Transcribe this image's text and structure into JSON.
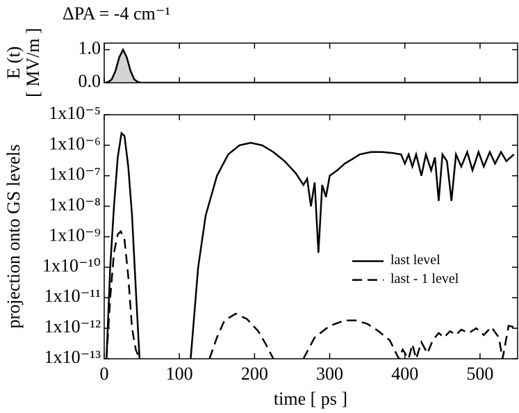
{
  "chart_data": [
    {
      "type": "area",
      "title": "ΔPA = -4 cm⁻¹",
      "y_label": "E (t)",
      "y_label_unit": "[ MV/m ]",
      "xlim": [
        0,
        550
      ],
      "xticks": [
        0,
        100,
        200,
        300,
        400,
        500
      ],
      "ylim": [
        0,
        1.2
      ],
      "yticks": [
        {
          "value": 0,
          "label": "0.0"
        },
        {
          "value": 1,
          "label": "1.0"
        }
      ],
      "series": [
        {
          "color": "#000000",
          "fill": "#d3d3d3",
          "x": [
            0,
            5,
            10,
            15,
            20,
            25,
            30,
            35,
            40,
            45,
            50,
            550
          ],
          "values": [
            0,
            0.02,
            0.1,
            0.36,
            0.77,
            1.0,
            0.77,
            0.36,
            0.1,
            0.02,
            0,
            0
          ]
        }
      ]
    },
    {
      "type": "line",
      "x_label": "time [ ps ]",
      "y_label": "projection onto GS levels",
      "log_y": true,
      "legend": "center right",
      "xlim": [
        0,
        550
      ],
      "xticks": [
        0,
        100,
        200,
        300,
        400,
        500
      ],
      "ylim": [
        1e-13,
        1e-05
      ],
      "yticks": [
        {
          "value": 1e-05,
          "label": "1x10⁻⁵"
        },
        {
          "value": 1e-06,
          "label": "1x10⁻⁶"
        },
        {
          "value": 1e-07,
          "label": "1x10⁻⁷"
        },
        {
          "value": 1e-08,
          "label": "1x10⁻⁸"
        },
        {
          "value": 1e-09,
          "label": "1x10⁻⁹"
        },
        {
          "value": 1e-10,
          "label": "1x10⁻¹⁰"
        },
        {
          "value": 1e-11,
          "label": "1x10⁻¹¹"
        },
        {
          "value": 1e-12,
          "label": "1x10⁻¹²"
        },
        {
          "value": 1e-13,
          "label": "1x10⁻¹³"
        }
      ],
      "series": [
        {
          "name": "last level",
          "color": "#000000",
          "style": "solid",
          "x": [
            3,
            8,
            13,
            18,
            23,
            27,
            32,
            37,
            42,
            47,
            80,
            115,
            125,
            135,
            150,
            165,
            180,
            195,
            210,
            225,
            240,
            255,
            265,
            270,
            275,
            280,
            285,
            290,
            295,
            300,
            310,
            320,
            330,
            340,
            355,
            370,
            385,
            395,
            400,
            405,
            410,
            415,
            422,
            428,
            435,
            440,
            445,
            450,
            456,
            462,
            468,
            475,
            483,
            490,
            498,
            505,
            513,
            520,
            528,
            535,
            545
          ],
          "values": [
            1e-13,
            1e-10,
            1e-08,
            4e-07,
            2.5e-06,
            2e-06,
            2e-07,
            5e-09,
            2e-11,
            1e-13,
            null,
            1e-13,
            1e-10,
            5e-09,
            1e-07,
            5e-07,
            1e-06,
            1.2e-06,
            1e-06,
            6e-07,
            3e-07,
            1.2e-07,
            5e-08,
            8e-08,
            1e-08,
            6e-08,
            3e-10,
            5e-08,
            2e-08,
            1e-07,
            1.5e-07,
            2.5e-07,
            3.5e-07,
            5e-07,
            6e-07,
            6e-07,
            5.5e-07,
            5e-07,
            2.5e-07,
            5e-07,
            2e-07,
            5e-07,
            1e-07,
            5e-07,
            1.5e-07,
            4e-07,
            1.5e-08,
            5e-07,
            3e-07,
            1.5e-08,
            5e-07,
            2e-07,
            6e-07,
            1.5e-07,
            6e-07,
            2e-07,
            6e-07,
            2.5e-07,
            6e-07,
            3e-07,
            5e-07
          ]
        },
        {
          "name": "last - 1 level",
          "color": "#000000",
          "style": "dashed",
          "x": [
            3,
            8,
            13,
            18,
            22,
            27,
            32,
            37,
            42,
            47,
            100,
            140,
            150,
            160,
            175,
            190,
            205,
            215,
            225,
            250,
            265,
            280,
            300,
            320,
            335,
            350,
            365,
            380,
            392,
            397,
            405,
            410,
            415,
            422,
            430,
            437,
            445,
            452,
            460,
            468,
            475,
            485,
            495,
            505,
            515,
            525,
            530,
            538,
            545
          ],
          "values": [
            1e-13,
            1e-11,
            3e-10,
            1.2e-09,
            1.5e-09,
            8e-10,
            5e-11,
            1e-12,
            2e-13,
            1e-13,
            null,
            1e-13,
            5e-13,
            1.8e-12,
            3e-12,
            2e-12,
            8e-13,
            3e-13,
            1e-13,
            null,
            1e-13,
            5e-13,
            1.2e-12,
            1.8e-12,
            1.8e-12,
            1.4e-12,
            8e-13,
            4e-13,
            1e-13,
            2e-13,
            1e-13,
            3e-13,
            1e-13,
            3.5e-13,
            1.5e-13,
            4e-13,
            7e-13,
            5e-13,
            8e-13,
            6e-13,
            9e-13,
            7e-13,
            1e-12,
            6e-13,
            1.1e-12,
            5e-13,
            1e-13,
            1.2e-12,
            1.1e-12
          ]
        }
      ]
    }
  ]
}
